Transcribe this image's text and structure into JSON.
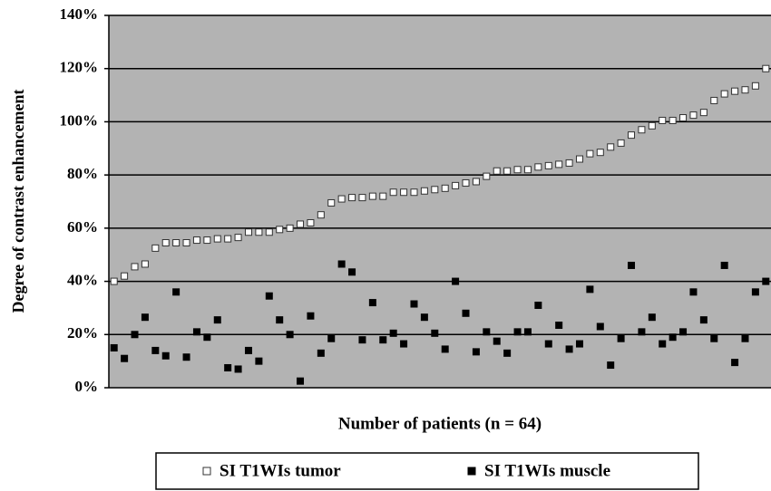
{
  "chart_data": {
    "type": "scatter",
    "ylabel": "Degree of contrast enhancement",
    "xlabel": "Number of patients (n = 64)",
    "categories": [
      null,
      null,
      null,
      null,
      null,
      null,
      null,
      null,
      null,
      null,
      null,
      null,
      null,
      null,
      null,
      null,
      null,
      null,
      null,
      null,
      null,
      null,
      null,
      null,
      null,
      null,
      null,
      null,
      null,
      null,
      null,
      null,
      null,
      null,
      null,
      null,
      null,
      null,
      null,
      null,
      null,
      null,
      null,
      null,
      null,
      null,
      null,
      null,
      null,
      null,
      null,
      null,
      null,
      null,
      null,
      null,
      null,
      null,
      null,
      null,
      null,
      null,
      null,
      null
    ],
    "series": [
      {
        "name": "SI T1WIs tumor",
        "color": "#ffffff",
        "values": [
          40,
          42,
          45.5,
          46.5,
          52.5,
          54.5,
          54.5,
          54.5,
          55.5,
          55.5,
          56,
          56,
          56.5,
          58.5,
          58.5,
          58.5,
          59.5,
          60,
          61.5,
          62,
          65,
          69.5,
          71,
          71.5,
          71.5,
          72,
          72,
          73.5,
          73.5,
          73.5,
          74,
          74.5,
          75,
          76,
          77,
          77.5,
          79.5,
          81.5,
          81.5,
          82,
          82,
          83,
          83.5,
          84,
          84.5,
          86,
          88,
          88.5,
          90.5,
          92,
          95,
          97,
          98.5,
          100.5,
          100.5,
          101.5,
          102.5,
          103.5,
          108,
          110.5,
          111.5,
          112,
          113.5,
          120
        ]
      },
      {
        "name": "SI T1WIs muscle",
        "color": "#000000",
        "values": [
          15,
          11,
          20,
          26.5,
          14,
          12,
          36,
          11.5,
          21,
          19,
          25.5,
          7.5,
          7,
          14,
          10,
          34.5,
          25.5,
          20,
          2.5,
          27,
          13,
          18.5,
          46.5,
          43.5,
          18,
          32,
          18,
          20.5,
          16.5,
          31.5,
          26.5,
          20.5,
          14.5,
          40,
          28,
          13.5,
          21,
          17.5,
          13,
          21,
          21,
          31,
          16.5,
          23.5,
          14.5,
          16.5,
          37,
          23,
          8.5,
          18.5,
          46,
          21,
          26.5,
          16.5,
          19,
          21,
          36,
          25.5,
          18.5,
          46,
          9.5,
          18.5,
          36,
          40
        ]
      }
    ],
    "ylim": [
      0,
      140
    ],
    "yticks": [
      {
        "value": 0,
        "label": "0%"
      },
      {
        "value": 20,
        "label": "20%"
      },
      {
        "value": 40,
        "label": "40%"
      },
      {
        "value": 60,
        "label": "60%"
      },
      {
        "value": 80,
        "label": "80%"
      },
      {
        "value": 100,
        "label": "100%"
      },
      {
        "value": 120,
        "label": "120%"
      },
      {
        "value": 140,
        "label": "140%"
      }
    ],
    "grid": true,
    "plot_background": "#b3b3b3",
    "legend": "bottom"
  }
}
